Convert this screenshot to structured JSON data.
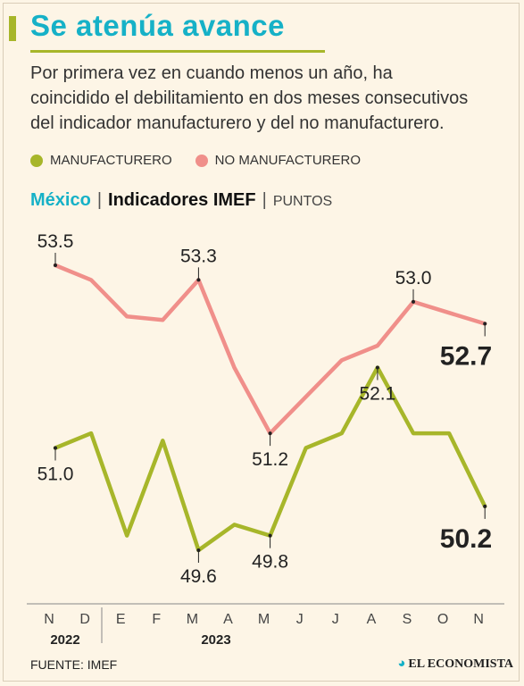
{
  "header": {
    "title": "Se atenúa avance",
    "subtitle": "Por primera vez en cuando menos un año, ha coincidido el debilitamiento en dos meses consecutivos del indicador manufacturero y del no manufacturero."
  },
  "legend": [
    {
      "label": "MANUFACTURERO",
      "color": "#a7b62a"
    },
    {
      "label": "NO MANUFACTURERO",
      "color": "#f08f8a"
    }
  ],
  "chart_header": {
    "country": "México",
    "name": "Indicadores IMEF",
    "units": "PUNTOS"
  },
  "chart_data": {
    "type": "line",
    "categories": [
      "N",
      "D",
      "E",
      "F",
      "M",
      "A",
      "M",
      "J",
      "J",
      "A",
      "S",
      "O",
      "N"
    ],
    "year_labels": [
      {
        "label": "2022",
        "start": 0,
        "end": 1
      },
      {
        "label": "2023",
        "start": 2,
        "end": 12
      }
    ],
    "series": [
      {
        "name": "NO MANUFACTURERO",
        "color": "#f08f8a",
        "values": [
          53.5,
          53.3,
          52.8,
          52.75,
          53.3,
          52.1,
          51.2,
          51.7,
          52.2,
          52.4,
          53.0,
          52.85,
          52.7
        ],
        "labels": [
          {
            "index": 0,
            "text": "53.5",
            "pos": "above"
          },
          {
            "index": 4,
            "text": "53.3",
            "pos": "above"
          },
          {
            "index": 6,
            "text": "51.2",
            "pos": "below"
          },
          {
            "index": 10,
            "text": "53.0",
            "pos": "above"
          },
          {
            "index": 12,
            "text": "52.7",
            "pos": "below",
            "bold": true
          }
        ]
      },
      {
        "name": "MANUFACTURERO",
        "color": "#a7b62a",
        "values": [
          51.0,
          51.2,
          49.8,
          51.1,
          49.6,
          49.95,
          49.8,
          51.0,
          51.2,
          52.1,
          51.2,
          51.2,
          50.2
        ],
        "labels": [
          {
            "index": 0,
            "text": "51.0",
            "pos": "below"
          },
          {
            "index": 4,
            "text": "49.6",
            "pos": "below"
          },
          {
            "index": 6,
            "text": "49.8",
            "pos": "below"
          },
          {
            "index": 9,
            "text": "52.1",
            "pos": "below"
          },
          {
            "index": 12,
            "text": "50.2",
            "pos": "below",
            "bold": true
          }
        ]
      }
    ]
  },
  "footer": {
    "source": "FUENTE: IMEF",
    "brand": "EL ECONOMISTA"
  }
}
